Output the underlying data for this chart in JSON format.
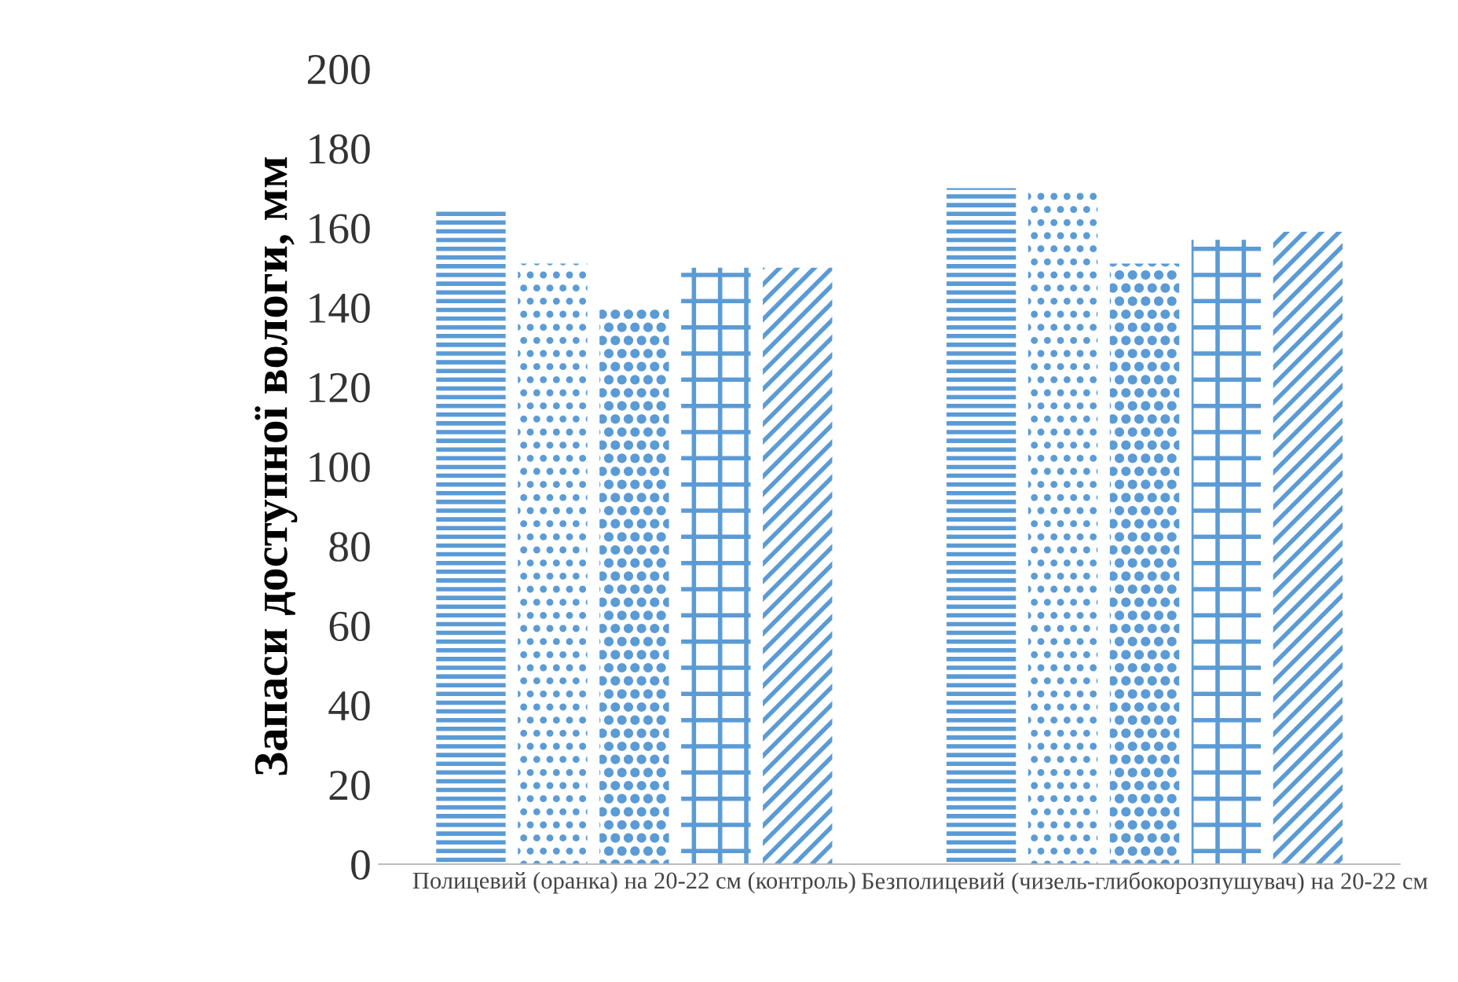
{
  "chart_data": {
    "type": "bar",
    "ylabel": "Запаси доступної вологи, мм",
    "categories": [
      "Полицевий (оранка) на 20-22 см (контроль)",
      "Безполицевий (чизель-глибокорозпушувач) на 20-22 см"
    ],
    "series": [
      {
        "color": "#5b9bd5",
        "values": [
          165,
          170
        ]
      },
      {
        "color": "#5b9bd5",
        "values": [
          151,
          169
        ]
      },
      {
        "color": "#5b9bd5",
        "values": [
          140,
          151
        ]
      },
      {
        "color": "#5b9bd5",
        "values": [
          150,
          157
        ]
      },
      {
        "color": "#5b9bd5",
        "values": [
          150,
          159
        ]
      }
    ],
    "ylim": [
      0,
      200
    ],
    "yticks": [
      0,
      20,
      40,
      60,
      80,
      100,
      120,
      140,
      160,
      180,
      200
    ],
    "grid": false,
    "legend": false
  }
}
